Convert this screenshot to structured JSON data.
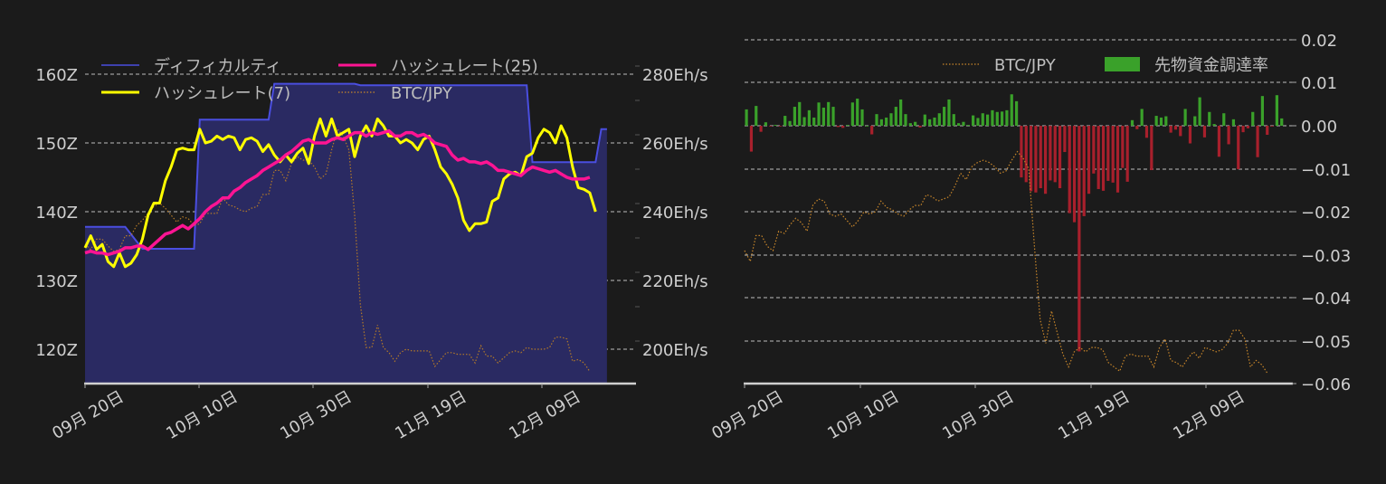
{
  "chart_data": [
    {
      "type": "line",
      "title": "",
      "xlabel": "",
      "ylabel_left": "",
      "ylabel_right": "",
      "x_ticks": [
        "09月 20日",
        "10月 10日",
        "10月 30日",
        "11月 19日",
        "12月 09日"
      ],
      "left_axis": {
        "ticks": [
          "120Z",
          "130Z",
          "140Z",
          "150Z",
          "160Z"
        ],
        "ylim": [
          115,
          161
        ]
      },
      "right_axis": {
        "ticks": [
          "200Eh/s",
          "220Eh/s",
          "240Eh/s",
          "260Eh/s",
          "280Eh/s"
        ],
        "ylim": [
          190,
          282
        ]
      },
      "grid": true,
      "legend": {
        "position": "upper-left",
        "entries": [
          {
            "label": "ディフィカルティ",
            "color": "#4a4ee0",
            "style": "line-area"
          },
          {
            "label": "ハッシュレート(25)",
            "color": "#ff1493",
            "style": "line"
          },
          {
            "label": "ハッシュレート(7)",
            "color": "#ffff00",
            "style": "line"
          },
          {
            "label": "BTC/JPY",
            "color": "#c8862a",
            "style": "dotted"
          }
        ]
      },
      "series": [
        {
          "name": "ディフィカルティ",
          "axis": "left",
          "unit": "Z",
          "points": [
            [
              0,
              137.8
            ],
            [
              7,
              137.8
            ],
            [
              10,
              134.6
            ],
            [
              19,
              134.6
            ],
            [
              20,
              153.4
            ],
            [
              32,
              153.4
            ],
            [
              33,
              158.6
            ],
            [
              47,
              158.6
            ],
            [
              48,
              158.4
            ],
            [
              77,
              158.4
            ],
            [
              78,
              147.2
            ],
            [
              89,
              147.2
            ],
            [
              90,
              152
            ],
            [
              91,
              152
            ]
          ]
        },
        {
          "name": "ハッシュレート(7)",
          "axis": "right",
          "unit": "Eh/s",
          "values": [
            229.5,
            233,
            229,
            230.5,
            225.5,
            224,
            228,
            224,
            225,
            227.5,
            232,
            239,
            242.5,
            242.5,
            249,
            253,
            258,
            258.5,
            258,
            258,
            264,
            260,
            260.5,
            262,
            261,
            262,
            261.5,
            258,
            261,
            261.5,
            260.5,
            257.5,
            259.5,
            256.5,
            254.5,
            256.5,
            254.5,
            257,
            258.5,
            254,
            262,
            267,
            262,
            267,
            262,
            263,
            264,
            256,
            262,
            265,
            262,
            267,
            265,
            262,
            262,
            260,
            261,
            260,
            258,
            261,
            262,
            258,
            253,
            251,
            248,
            244,
            237.5,
            234.5,
            236.5,
            236.5,
            237,
            243,
            244,
            249.5,
            251,
            251.5,
            250.5,
            256,
            257,
            261.5,
            264,
            263,
            260,
            265,
            261.5,
            253,
            247,
            246.5,
            245.5,
            240
          ]
        },
        {
          "name": "ハッシュレート(25)",
          "axis": "right",
          "unit": "Eh/s",
          "values": [
            228,
            228.5,
            228,
            228,
            227.5,
            228,
            228.5,
            229.5,
            229.5,
            230,
            230,
            229,
            230.5,
            232,
            233.5,
            234,
            235,
            236,
            235,
            236.5,
            238,
            240,
            241.5,
            242.5,
            244,
            244,
            246,
            247,
            248.5,
            249.5,
            250.5,
            252,
            253,
            254,
            255,
            256.5,
            257.5,
            259,
            260.5,
            261,
            260,
            260,
            260,
            261,
            261.5,
            261,
            262,
            263,
            263,
            262,
            263,
            262.5,
            263,
            263.5,
            262,
            262,
            263,
            263,
            262,
            262.5,
            261.5,
            260,
            259.5,
            259,
            256.5,
            255,
            255.5,
            254.5,
            254.5,
            254,
            254.5,
            253.5,
            252,
            252,
            251.5,
            251,
            250.5,
            252,
            253,
            252.5,
            252,
            251.5,
            252,
            251,
            250,
            249.5,
            249.5,
            249.5,
            250
          ]
        },
        {
          "name": "BTC/JPY",
          "axis": "right",
          "unit": "relative",
          "values": [
            230.5,
            229,
            232,
            232,
            230,
            228.5,
            229,
            233,
            233,
            236,
            237.5,
            239.5,
            241.5,
            242.5,
            241,
            239,
            237,
            238.5,
            238,
            236,
            236.5,
            239.5,
            239.5,
            239.5,
            244,
            242,
            241.5,
            240.5,
            240,
            241,
            241.5,
            245,
            245,
            252,
            252,
            249,
            254,
            256,
            255,
            255,
            253,
            249.5,
            251,
            258,
            264,
            262,
            258,
            239,
            213,
            200.5,
            200.5,
            207,
            200.5,
            199,
            196.5,
            199,
            200,
            199.5,
            199.5,
            199.5,
            199.5,
            195,
            197,
            199,
            199,
            198.5,
            198.5,
            198.5,
            196,
            201,
            198,
            198,
            196,
            197.5,
            199,
            199.5,
            199,
            200.5,
            200,
            200,
            200,
            200.5,
            203.5,
            203.5,
            203,
            196.5,
            197,
            196,
            193.5
          ]
        }
      ]
    },
    {
      "type": "bar",
      "title": "",
      "xlabel": "",
      "x_ticks": [
        "09月 20日",
        "10月 10日",
        "10月 30日",
        "11月 19日",
        "12月 09日"
      ],
      "right_axis": {
        "ticks": [
          "-0.06",
          "-0.05",
          "-0.04",
          "-0.03",
          "-0.02",
          "-0.01",
          "0.00",
          "0.01",
          "0.02"
        ],
        "ylim": [
          -0.06,
          0.02
        ]
      },
      "grid": true,
      "legend": {
        "position": "upper-right",
        "entries": [
          {
            "label": "BTC/JPY",
            "color": "#c8862a",
            "style": "dotted"
          },
          {
            "label": "先物資金調達率",
            "color": "#3aa12a",
            "style": "bar"
          }
        ]
      },
      "series": [
        {
          "name": "先物資金調達率",
          "positive_color": "#3aa12a",
          "negative_color": "#a8202c",
          "values": [
            0.0038,
            -0.006,
            0.0046,
            -0.0014,
            0.0008,
            -0.0001,
            0.0002,
            -0.0001,
            0.0023,
            0.0011,
            0.0044,
            0.0055,
            0.002,
            0.0036,
            0.0019,
            0.0054,
            0.0042,
            0.0055,
            0.0044,
            -0.0003,
            -0.0005,
            0.0002,
            0.0054,
            0.0063,
            0.0038,
            0.0,
            -0.002,
            0.0027,
            0.0015,
            0.0019,
            0.0029,
            0.0044,
            0.0061,
            0.0027,
            0.0006,
            0.0009,
            -0.0004,
            0.0026,
            0.0015,
            0.0019,
            0.0029,
            0.0044,
            0.0061,
            0.0027,
            0.0006,
            0.0009,
            0.0002,
            0.0024,
            0.0018,
            0.0029,
            0.0026,
            0.0036,
            0.0032,
            0.0033,
            0.0036,
            0.0073,
            0.0057,
            -0.012,
            -0.0131,
            -0.0152,
            -0.0155,
            -0.0145,
            -0.0158,
            -0.0127,
            -0.0131,
            -0.0145,
            -0.0061,
            -0.0203,
            -0.0224,
            -0.0524,
            -0.021,
            -0.0158,
            -0.0111,
            -0.0147,
            -0.0151,
            -0.0128,
            -0.0132,
            -0.0155,
            -0.0098,
            -0.013,
            0.0013,
            -0.0008,
            0.0039,
            -0.0028,
            -0.0103,
            0.0023,
            0.0019,
            0.0022,
            -0.0016,
            -0.0009,
            -0.0024,
            0.0039,
            -0.0041,
            0.0022,
            0.0066,
            -0.0027,
            0.0032,
            0.0004,
            -0.0072,
            0.0029,
            -0.0043,
            0.0015,
            -0.0101,
            -0.0015,
            -0.0006,
            0.0032,
            -0.0073,
            0.0069,
            -0.0021,
            -0.0001,
            0.0071,
            0.0017
          ]
        },
        {
          "name": "BTC/JPY",
          "style": "dotted",
          "values": [
            -0.029,
            -0.0315,
            -0.0255,
            -0.0255,
            -0.028,
            -0.029,
            -0.0245,
            -0.025,
            -0.023,
            -0.0215,
            -0.0225,
            -0.0245,
            -0.0185,
            -0.017,
            -0.0175,
            -0.0205,
            -0.021,
            -0.0205,
            -0.022,
            -0.0235,
            -0.022,
            -0.02,
            -0.0205,
            -0.02,
            -0.0175,
            -0.019,
            -0.0195,
            -0.0205,
            -0.021,
            -0.0195,
            -0.0185,
            -0.0185,
            -0.016,
            -0.0165,
            -0.0175,
            -0.017,
            -0.0165,
            -0.014,
            -0.011,
            -0.0125,
            -0.0095,
            -0.0085,
            -0.008,
            -0.0085,
            -0.0095,
            -0.011,
            -0.0105,
            -0.008,
            -0.006,
            -0.0075,
            -0.01,
            -0.028,
            -0.045,
            -0.0505,
            -0.043,
            -0.048,
            -0.053,
            -0.056,
            -0.0525,
            -0.0515,
            -0.0525,
            -0.0515,
            -0.0515,
            -0.052,
            -0.055,
            -0.056,
            -0.057,
            -0.0535,
            -0.053,
            -0.0535,
            -0.0535,
            -0.0535,
            -0.056,
            -0.0515,
            -0.0495,
            -0.0545,
            -0.055,
            -0.056,
            -0.054,
            -0.0525,
            -0.054,
            -0.0515,
            -0.052,
            -0.0525,
            -0.052,
            -0.0505,
            -0.0475,
            -0.0475,
            -0.0495,
            -0.056,
            -0.0545,
            -0.0555,
            -0.0575
          ]
        }
      ]
    }
  ]
}
